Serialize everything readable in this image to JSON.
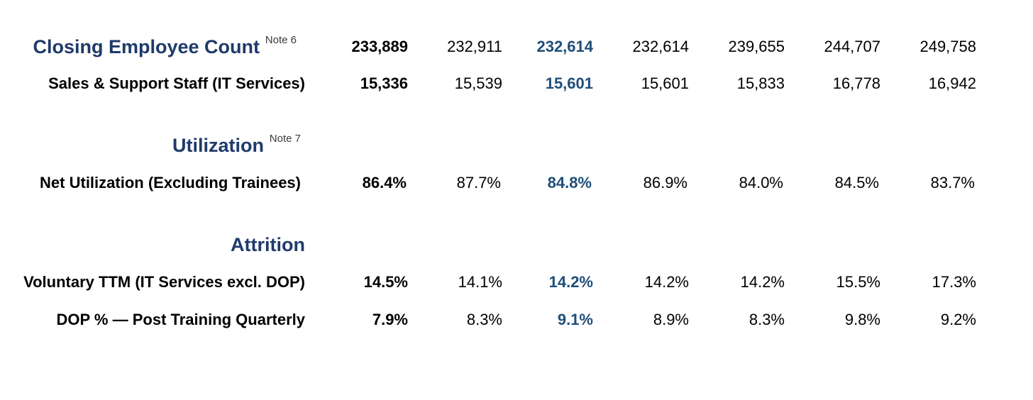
{
  "sections": {
    "headcount": {
      "title": "Closing Employee Count",
      "note": "Note 6",
      "values": [
        "233,889",
        "232,911",
        "232,614",
        "232,614",
        "239,655",
        "244,707",
        "249,758"
      ]
    },
    "sales_support": {
      "label": "Sales & Support Staff (IT Services)",
      "values": [
        "15,336",
        "15,539",
        "15,601",
        "15,601",
        "15,833",
        "16,778",
        "16,942"
      ]
    },
    "utilization": {
      "title": "Utilization",
      "note": "Note 7"
    },
    "net_utilization": {
      "label": "Net Utilization (Excluding Trainees)",
      "values": [
        "86.4%",
        "87.7%",
        "84.8%",
        "86.9%",
        "84.0%",
        "84.5%",
        "83.7%"
      ]
    },
    "attrition": {
      "title": "Attrition"
    },
    "voluntary_ttm": {
      "label": "Voluntary TTM (IT Services excl. DOP)",
      "values": [
        "14.5%",
        "14.1%",
        "14.2%",
        "14.2%",
        "14.2%",
        "15.5%",
        "17.3%"
      ]
    },
    "dop": {
      "label": "DOP % — Post Training Quarterly",
      "values": [
        "7.9%",
        "8.3%",
        "9.1%",
        "8.9%",
        "8.3%",
        "9.8%",
        "9.2%"
      ]
    }
  },
  "colors": {
    "section_title": "#1f3a6b",
    "highlight_column": "#1f4e79",
    "text": "#000000"
  }
}
